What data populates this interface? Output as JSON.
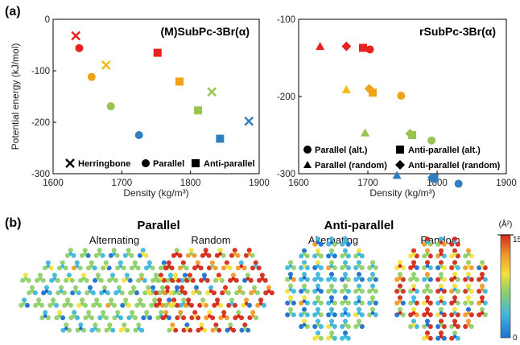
{
  "panel_a_label": "(a)",
  "panel_b_label": "(b)",
  "chart_data": [
    {
      "type": "scatter",
      "title": "(M)SubPc-3Br(α)",
      "xlabel": "Density (kg/m³)",
      "ylabel": "Potential energy (kJ/mol)",
      "xlim": [
        1600,
        1900
      ],
      "ylim": [
        -300,
        0
      ],
      "xticks": [
        1600,
        1700,
        1800,
        1900
      ],
      "yticks": [
        0,
        -100,
        -200,
        -300
      ],
      "legend_position": "bottom",
      "legend": [
        {
          "label": "Herringbone",
          "marker": "x"
        },
        {
          "label": "Parallel",
          "marker": "circle"
        },
        {
          "label": "Anti-parallel",
          "marker": "square"
        }
      ],
      "points": [
        {
          "x": 1633,
          "y": -32,
          "marker": "x",
          "color": "#e8221f"
        },
        {
          "x": 1638,
          "y": -56,
          "marker": "circle",
          "color": "#e8221f"
        },
        {
          "x": 1656,
          "y": -112,
          "marker": "circle",
          "color": "#f1a218"
        },
        {
          "x": 1677,
          "y": -89,
          "marker": "x",
          "color": "#f2b90f"
        },
        {
          "x": 1684,
          "y": -169,
          "marker": "circle",
          "color": "#9ac452"
        },
        {
          "x": 1725,
          "y": -225,
          "marker": "circle",
          "color": "#2f7fbf"
        },
        {
          "x": 1752,
          "y": -65,
          "marker": "square",
          "color": "#e8221f"
        },
        {
          "x": 1784,
          "y": -121,
          "marker": "square",
          "color": "#f1a218"
        },
        {
          "x": 1811,
          "y": -177,
          "marker": "square",
          "color": "#9ac452"
        },
        {
          "x": 1831,
          "y": -141,
          "marker": "x",
          "color": "#9ac452"
        },
        {
          "x": 1843,
          "y": -232,
          "marker": "square",
          "color": "#2f7fbf"
        },
        {
          "x": 1885,
          "y": -198,
          "marker": "x",
          "color": "#2f7fbf"
        }
      ]
    },
    {
      "type": "scatter",
      "title": "rSubPc-3Br(α)",
      "xlabel": "Density (kg/m³)",
      "ylabel": "",
      "xlim": [
        1600,
        1900
      ],
      "ylim": [
        -300,
        -100
      ],
      "xticks": [
        1600,
        1700,
        1800,
        1900
      ],
      "yticks": [
        -100,
        -200,
        -300
      ],
      "legend_position": "bottom",
      "legend": [
        {
          "label": "Parallel (alt.)",
          "marker": "circle"
        },
        {
          "label": "Anti-parallel (alt.)",
          "marker": "square"
        },
        {
          "label": "Parallel (random)",
          "marker": "triangle"
        },
        {
          "label": "Anti-parallel (random)",
          "marker": "diamond"
        }
      ],
      "points": [
        {
          "x": 1631,
          "y": -135,
          "marker": "triangle",
          "color": "#e8221f"
        },
        {
          "x": 1669,
          "y": -135,
          "marker": "diamond",
          "color": "#e8221f"
        },
        {
          "x": 1693,
          "y": -137,
          "marker": "square",
          "color": "#e8221f"
        },
        {
          "x": 1703,
          "y": -139,
          "marker": "circle",
          "color": "#e8221f"
        },
        {
          "x": 1669,
          "y": -191,
          "marker": "triangle",
          "color": "#f2b90f"
        },
        {
          "x": 1702,
          "y": -190,
          "marker": "diamond",
          "color": "#f1a218"
        },
        {
          "x": 1707,
          "y": -195,
          "marker": "square",
          "color": "#f1a218"
        },
        {
          "x": 1748,
          "y": -199,
          "marker": "circle",
          "color": "#f1a218"
        },
        {
          "x": 1696,
          "y": -247,
          "marker": "triangle",
          "color": "#9ac452"
        },
        {
          "x": 1761,
          "y": -248,
          "marker": "diamond",
          "color": "#9ac452"
        },
        {
          "x": 1764,
          "y": -250,
          "marker": "square",
          "color": "#9ac452"
        },
        {
          "x": 1792,
          "y": -257,
          "marker": "circle",
          "color": "#9ac452"
        },
        {
          "x": 1742,
          "y": -302,
          "marker": "triangle",
          "color": "#2f7fbf"
        },
        {
          "x": 1793,
          "y": -305,
          "marker": "diamond",
          "color": "#2f7fbf"
        },
        {
          "x": 1796,
          "y": -306,
          "marker": "square",
          "color": "#2f7fbf"
        },
        {
          "x": 1831,
          "y": -313,
          "marker": "circle",
          "color": "#2f7fbf"
        }
      ]
    }
  ],
  "panel_b": {
    "groups": [
      {
        "title": "Parallel",
        "subs": [
          "Alternating",
          "Random"
        ]
      },
      {
        "title": "Anti-parallel",
        "subs": [
          "Alternating",
          "Random"
        ]
      }
    ],
    "colorbar": {
      "unit": "(Å²)",
      "max_label": "15",
      "min_label": "0",
      "colors": [
        "#1e6fd0",
        "#3fb6dc",
        "#8fd06a",
        "#f2e23a",
        "#f09a2a",
        "#d42a1a"
      ]
    }
  }
}
